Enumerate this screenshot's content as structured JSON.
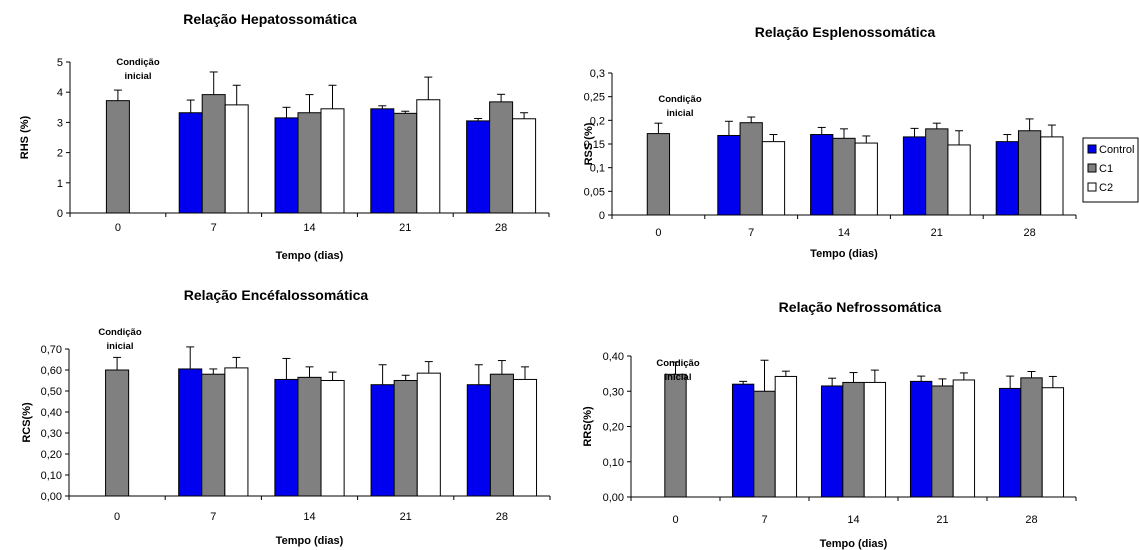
{
  "chart_data": [
    {
      "type": "bar",
      "title": "Relação Hepatossomática",
      "xlabel": "Tempo (dias)",
      "ylabel": "RHS (%)",
      "categories": [
        "0",
        "7",
        "14",
        "21",
        "28"
      ],
      "ylim": [
        0,
        5
      ],
      "yticks": [
        "0",
        "1",
        "2",
        "3",
        "4",
        "5"
      ],
      "ytick_values": [
        0,
        1,
        2,
        3,
        4,
        5
      ],
      "annotation": [
        "Condição",
        "inicial"
      ],
      "initial": {
        "value": 3.72,
        "err": 0.35
      },
      "series": [
        {
          "name": "Control",
          "values": [
            null,
            3.32,
            3.15,
            3.45,
            3.05
          ],
          "err": [
            null,
            0.42,
            0.35,
            0.1,
            0.08
          ]
        },
        {
          "name": "C1",
          "values": [
            null,
            3.92,
            3.32,
            3.3,
            3.68
          ],
          "err": [
            null,
            0.75,
            0.6,
            0.07,
            0.25
          ]
        },
        {
          "name": "C2",
          "values": [
            null,
            3.58,
            3.45,
            3.75,
            3.12
          ],
          "err": [
            null,
            0.65,
            0.78,
            0.75,
            0.2
          ]
        }
      ]
    },
    {
      "type": "bar",
      "title": "Relação Esplenossomática",
      "xlabel": "Tempo (dias)",
      "ylabel": "RSS (%)",
      "categories": [
        "0",
        "7",
        "14",
        "21",
        "28"
      ],
      "ylim": [
        0,
        0.3
      ],
      "yticks": [
        "0",
        "0,05",
        "0,1",
        "0,15",
        "0,2",
        "0,25",
        "0,3"
      ],
      "ytick_values": [
        0,
        0.05,
        0.1,
        0.15,
        0.2,
        0.25,
        0.3
      ],
      "annotation": [
        "Condição",
        "inicial"
      ],
      "initial": {
        "value": 0.172,
        "err": 0.022
      },
      "series": [
        {
          "name": "Control",
          "values": [
            null,
            0.168,
            0.17,
            0.165,
            0.155
          ],
          "err": [
            null,
            0.03,
            0.015,
            0.018,
            0.015
          ]
        },
        {
          "name": "C1",
          "values": [
            null,
            0.195,
            0.162,
            0.182,
            0.178
          ],
          "err": [
            null,
            0.012,
            0.02,
            0.012,
            0.025
          ]
        },
        {
          "name": "C2",
          "values": [
            null,
            0.155,
            0.152,
            0.148,
            0.165
          ],
          "err": [
            null,
            0.015,
            0.015,
            0.03,
            0.025
          ]
        }
      ],
      "legend": "right"
    },
    {
      "type": "bar",
      "title": "Relação Encéfalossomática",
      "xlabel": "Tempo (dias)",
      "ylabel": "RCS(%)",
      "categories": [
        "0",
        "7",
        "14",
        "21",
        "28"
      ],
      "ylim": [
        0,
        0.7
      ],
      "yticks": [
        "0,00",
        "0,10",
        "0,20",
        "0,30",
        "0,40",
        "0,50",
        "0,60",
        "0,70"
      ],
      "ytick_values": [
        0,
        0.1,
        0.2,
        0.3,
        0.4,
        0.5,
        0.6,
        0.7
      ],
      "annotation": [
        "Condição",
        "inicial"
      ],
      "initial": {
        "value": 0.6,
        "err": 0.06
      },
      "series": [
        {
          "name": "Control",
          "values": [
            null,
            0.605,
            0.555,
            0.53,
            0.53
          ],
          "err": [
            null,
            0.105,
            0.1,
            0.095,
            0.095
          ]
        },
        {
          "name": "C1",
          "values": [
            null,
            0.58,
            0.565,
            0.55,
            0.58
          ],
          "err": [
            null,
            0.025,
            0.05,
            0.025,
            0.065
          ]
        },
        {
          "name": "C2",
          "values": [
            null,
            0.61,
            0.55,
            0.585,
            0.555
          ],
          "err": [
            null,
            0.05,
            0.04,
            0.055,
            0.06
          ]
        }
      ]
    },
    {
      "type": "bar",
      "title": "Relação Nefrossomática",
      "xlabel": "Tempo (dias)",
      "ylabel": "RRS(%)",
      "categories": [
        "0",
        "7",
        "14",
        "21",
        "28"
      ],
      "ylim": [
        0,
        0.4
      ],
      "yticks": [
        "0,00",
        "0,10",
        "0,20",
        "0,30",
        "0,40"
      ],
      "ytick_values": [
        0,
        0.1,
        0.2,
        0.3,
        0.4
      ],
      "annotation": [
        "Condição",
        "inicial"
      ],
      "initial": {
        "value": 0.348,
        "err": 0.035
      },
      "series": [
        {
          "name": "Control",
          "values": [
            null,
            0.32,
            0.315,
            0.328,
            0.308
          ],
          "err": [
            null,
            0.008,
            0.022,
            0.015,
            0.035
          ]
        },
        {
          "name": "C1",
          "values": [
            null,
            0.3,
            0.325,
            0.315,
            0.338
          ],
          "err": [
            null,
            0.088,
            0.028,
            0.02,
            0.018
          ]
        },
        {
          "name": "C2",
          "values": [
            null,
            0.342,
            0.325,
            0.332,
            0.31
          ],
          "err": [
            null,
            0.015,
            0.035,
            0.02,
            0.032
          ]
        }
      ]
    }
  ],
  "legend": {
    "items": [
      {
        "label": "Control",
        "color": "#0000EE"
      },
      {
        "label": "C1",
        "color": "#808080"
      },
      {
        "label": "C2",
        "color": "#FFFFFF"
      }
    ]
  },
  "colors": {
    "control": "#0000EE",
    "c1": "#808080",
    "c2": "#FFFFFF",
    "initial": "#808080"
  }
}
